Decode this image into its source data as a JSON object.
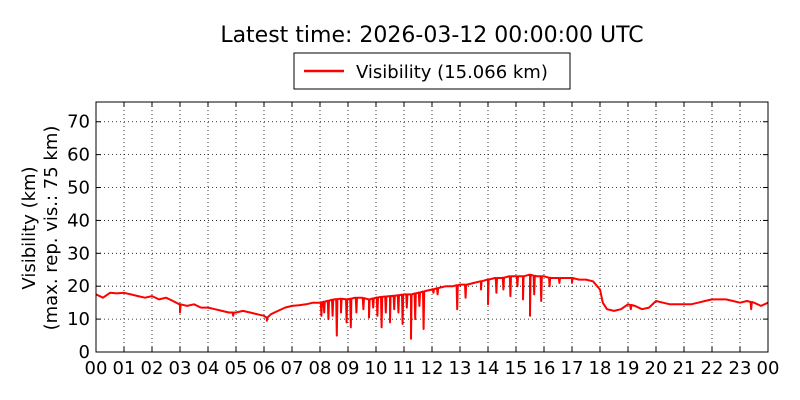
{
  "chart_data": {
    "type": "line",
    "title": "Latest time: 2026-03-12 00:00:00 UTC",
    "ylabel_line1": "Visibility (km)",
    "ylabel_line2": "(max. rep. vis.: 75 km)",
    "xlabel": "",
    "ylim": [
      0,
      76
    ],
    "yticks": [
      0,
      10,
      20,
      30,
      40,
      50,
      60,
      70
    ],
    "xticks": [
      "00",
      "01",
      "02",
      "03",
      "04",
      "05",
      "06",
      "07",
      "08",
      "09",
      "10",
      "11",
      "12",
      "13",
      "14",
      "15",
      "16",
      "17",
      "18",
      "19",
      "20",
      "21",
      "22",
      "23",
      "00"
    ],
    "xlim_hours": [
      0,
      24
    ],
    "grid": true,
    "legend_position": "top-center",
    "series": [
      {
        "name": "Visibility (15.066 km)",
        "color": "#ff0000",
        "x_hours": [
          0.0,
          0.25,
          0.5,
          0.75,
          1.0,
          1.25,
          1.5,
          1.75,
          2.0,
          2.25,
          2.5,
          2.75,
          3.0,
          3.25,
          3.5,
          3.75,
          4.0,
          4.25,
          4.5,
          4.75,
          5.0,
          5.25,
          5.5,
          5.75,
          6.0,
          6.1,
          6.25,
          6.5,
          6.75,
          7.0,
          7.25,
          7.5,
          7.75,
          8.0,
          8.25,
          8.5,
          8.75,
          9.0,
          9.25,
          9.5,
          9.75,
          10.0,
          10.25,
          10.5,
          10.75,
          11.0,
          11.25,
          11.5,
          11.75,
          12.0,
          12.25,
          12.5,
          12.75,
          13.0,
          13.25,
          13.5,
          13.75,
          14.0,
          14.25,
          14.5,
          14.75,
          15.0,
          15.25,
          15.5,
          15.75,
          16.0,
          16.25,
          16.5,
          16.75,
          17.0,
          17.25,
          17.5,
          17.75,
          18.0,
          18.1,
          18.25,
          18.5,
          18.75,
          19.0,
          19.25,
          19.5,
          19.75,
          20.0,
          20.25,
          20.5,
          20.75,
          21.0,
          21.25,
          21.5,
          21.75,
          22.0,
          22.25,
          22.5,
          22.75,
          23.0,
          23.25,
          23.5,
          23.75,
          24.0
        ],
        "values": [
          17.5,
          16.5,
          18.0,
          17.8,
          18.0,
          17.5,
          17.0,
          16.5,
          17.0,
          16.0,
          16.5,
          15.5,
          14.5,
          14.0,
          14.5,
          13.5,
          13.5,
          13.0,
          12.5,
          12.0,
          12.0,
          12.5,
          12.0,
          11.5,
          11.0,
          10.5,
          11.5,
          12.5,
          13.5,
          14.0,
          14.2,
          14.5,
          15.0,
          15.0,
          15.5,
          16.0,
          16.2,
          16.0,
          16.5,
          16.5,
          16.0,
          16.5,
          16.8,
          17.0,
          17.2,
          17.5,
          17.5,
          18.0,
          18.5,
          19.0,
          19.5,
          20.0,
          20.0,
          20.5,
          20.5,
          21.0,
          21.5,
          22.0,
          22.5,
          22.5,
          23.0,
          23.0,
          23.0,
          23.5,
          23.0,
          23.0,
          22.5,
          22.5,
          22.5,
          22.5,
          22.0,
          22.0,
          21.5,
          19.0,
          15.0,
          13.0,
          12.5,
          13.0,
          14.5,
          14.0,
          13.0,
          13.5,
          15.5,
          15.0,
          14.5,
          14.5,
          14.5,
          14.5,
          15.0,
          15.5,
          16.0,
          16.0,
          16.0,
          15.5,
          15.0,
          15.5,
          15.0,
          14.0,
          15.0
        ],
        "dips": [
          [
            3.0,
            12.0
          ],
          [
            4.9,
            11.0
          ],
          [
            6.1,
            9.5
          ],
          [
            8.05,
            11.0
          ],
          [
            8.15,
            12.0
          ],
          [
            8.3,
            10.0
          ],
          [
            8.45,
            11.0
          ],
          [
            8.6,
            5.0
          ],
          [
            8.75,
            12.0
          ],
          [
            8.95,
            9.0
          ],
          [
            9.1,
            7.5
          ],
          [
            9.3,
            12.0
          ],
          [
            9.55,
            13.0
          ],
          [
            9.75,
            10.5
          ],
          [
            9.9,
            13.5
          ],
          [
            10.05,
            11.0
          ],
          [
            10.2,
            7.5
          ],
          [
            10.35,
            12.0
          ],
          [
            10.5,
            9.0
          ],
          [
            10.65,
            13.0
          ],
          [
            10.8,
            12.0
          ],
          [
            10.95,
            8.5
          ],
          [
            11.1,
            13.5
          ],
          [
            11.25,
            4.0
          ],
          [
            11.4,
            10.0
          ],
          [
            11.55,
            14.0
          ],
          [
            11.7,
            7.0
          ],
          [
            12.05,
            18.0
          ],
          [
            12.2,
            17.5
          ],
          [
            12.9,
            13.0
          ],
          [
            13.2,
            16.5
          ],
          [
            13.75,
            19.0
          ],
          [
            14.0,
            14.5
          ],
          [
            14.3,
            18.0
          ],
          [
            14.55,
            19.0
          ],
          [
            14.8,
            17.0
          ],
          [
            15.05,
            20.0
          ],
          [
            15.25,
            16.0
          ],
          [
            15.5,
            11.0
          ],
          [
            15.65,
            17.5
          ],
          [
            15.9,
            15.5
          ],
          [
            16.2,
            20.0
          ],
          [
            16.55,
            21.0
          ],
          [
            17.0,
            21.0
          ],
          [
            19.1,
            13.0
          ],
          [
            23.4,
            13.0
          ]
        ]
      }
    ]
  }
}
